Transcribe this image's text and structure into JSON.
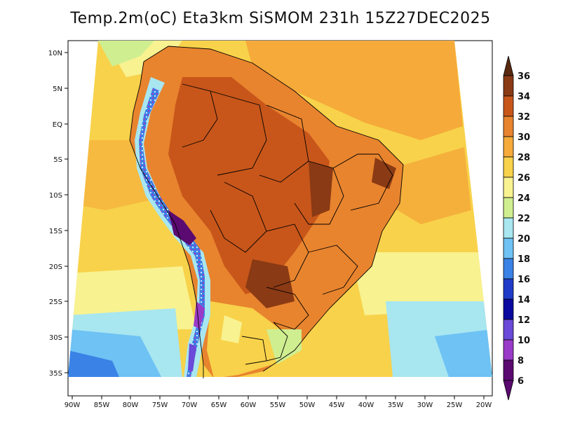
{
  "title": "Temp.2m(oC) Eta3km SiSMOM 231h 15Z27DEC2025",
  "map": {
    "lat_ticks": [
      "10N",
      "5N",
      "EQ",
      "5S",
      "10S",
      "15S",
      "20S",
      "25S",
      "30S",
      "35S"
    ],
    "lon_ticks": [
      "90W",
      "85W",
      "80W",
      "75W",
      "70W",
      "65W",
      "60W",
      "55W",
      "50W",
      "45W",
      "40W",
      "35W",
      "30W",
      "25W",
      "20W"
    ]
  },
  "colorbar": {
    "labels": [
      "36",
      "34",
      "32",
      "30",
      "28",
      "26",
      "24",
      "22",
      "20",
      "18",
      "16",
      "14",
      "12",
      "10",
      "8",
      "6"
    ],
    "colors": {
      "t36": "#5a2a10",
      "t34": "#8a3a14",
      "t32": "#c8561a",
      "t30": "#e8842e",
      "t28": "#f5aa3a",
      "t26": "#f8d24a",
      "t24": "#f8f290",
      "t22": "#cfee90",
      "t20": "#a8e6f0",
      "t18": "#6ec2f4",
      "t16": "#3a82e6",
      "t14": "#1f3cc8",
      "t12": "#0a0aa0",
      "t10": "#6a4ad8",
      "t8": "#9a3ac8",
      "t6": "#5a0a70"
    }
  }
}
